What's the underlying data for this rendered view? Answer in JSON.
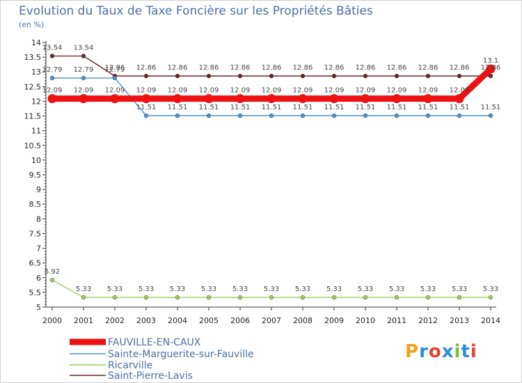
{
  "title": "Evolution du Taux de Taxe Foncière sur les Propriétés Bâties",
  "unit": "(en %)",
  "brand": "Proxiti",
  "brand_colors": [
    "#f4a01c",
    "#2b8fd6",
    "#e8422e",
    "#2b8fd6",
    "#7cbf2f",
    "#2b8fd6",
    "#e8422e"
  ],
  "chart_data": {
    "type": "line",
    "title": "Evolution du Taux de Taxe Foncière sur les Propriétés Bâties",
    "ylabel": "(en %)",
    "xlabel": "",
    "ylim": [
      5,
      14
    ],
    "yticks": [
      "5",
      "5.5",
      "6",
      "6.5",
      "7",
      "7.5",
      "8",
      "8.5",
      "9",
      "9.5",
      "10",
      "10.5",
      "11",
      "11.5",
      "12",
      "12.5",
      "13",
      "13.5",
      "14"
    ],
    "categories": [
      "2000",
      "2001",
      "2002",
      "2003",
      "2004",
      "2005",
      "2006",
      "2007",
      "2008",
      "2009",
      "2010",
      "2011",
      "2012",
      "2013",
      "2014"
    ],
    "grid": false,
    "legend_position": "bottom-left",
    "series": [
      {
        "name": "Saint-Pierre-Lavis",
        "color": "#6b2424",
        "values": [
          13.54,
          13.54,
          12.86,
          12.86,
          12.86,
          12.86,
          12.86,
          12.86,
          12.86,
          12.86,
          12.86,
          12.86,
          12.86,
          12.86,
          12.86
        ],
        "labels": [
          "13.54",
          "13.54",
          "12.86",
          "12.86",
          "12.86",
          "12.86",
          "12.86",
          "12.86",
          "12.86",
          "12.86",
          "12.86",
          "12.86",
          "12.86",
          "12.86",
          "12.86"
        ]
      },
      {
        "name": "Sainte-Marguerite-sur-Fauville",
        "color": "#4a8ed4",
        "values": [
          12.79,
          12.79,
          12.79,
          11.51,
          11.51,
          11.51,
          11.51,
          11.51,
          11.51,
          11.51,
          11.51,
          11.51,
          11.51,
          11.51,
          11.51
        ],
        "labels": [
          "12.79",
          "12.79",
          "12.79",
          "11.51",
          "11.51",
          "11.51",
          "11.51",
          "11.51",
          "11.51",
          "11.51",
          "11.51",
          "11.51",
          "11.51",
          "11.51",
          "11.51"
        ]
      },
      {
        "name": "Ricarville",
        "color": "#93cf5a",
        "values": [
          5.92,
          5.33,
          5.33,
          5.33,
          5.33,
          5.33,
          5.33,
          5.33,
          5.33,
          5.33,
          5.33,
          5.33,
          5.33,
          5.33,
          5.33
        ],
        "labels": [
          "5.92",
          "5.33",
          "5.33",
          "5.33",
          "5.33",
          "5.33",
          "5.33",
          "5.33",
          "5.33",
          "5.33",
          "5.33",
          "5.33",
          "5.33",
          "5.33",
          "5.33"
        ]
      },
      {
        "name": "FAUVILLE-EN-CAUX",
        "color": "#ee1111",
        "values": [
          12.09,
          12.09,
          12.09,
          12.09,
          12.09,
          12.09,
          12.09,
          12.09,
          12.09,
          12.09,
          12.09,
          12.09,
          12.09,
          12.09,
          13.1
        ],
        "labels": [
          "12.09",
          "12.09",
          "12.09",
          "12.09",
          "12.09",
          "12.09",
          "12.09",
          "12.09",
          "12.09",
          "12.09",
          "12.09",
          "12.09",
          "12.09",
          "12.09",
          "13.1"
        ]
      }
    ],
    "legend_order": [
      "FAUVILLE-EN-CAUX",
      "Sainte-Marguerite-sur-Fauville",
      "Ricarville",
      "Saint-Pierre-Lavis"
    ]
  }
}
